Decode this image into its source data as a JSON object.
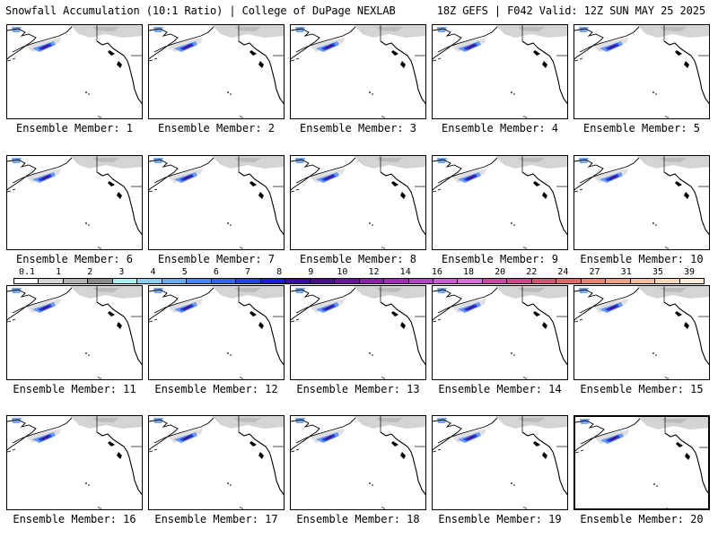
{
  "header": {
    "left": "Snowfall Accumulation (10:1 Ratio) | College of DuPage NEXLAB",
    "right": "18Z GEFS | F042 Valid: 12Z SUN MAY 25 2025"
  },
  "panels": [
    {
      "label": "Ensemble Member: 1"
    },
    {
      "label": "Ensemble Member: 2"
    },
    {
      "label": "Ensemble Member: 3"
    },
    {
      "label": "Ensemble Member: 4"
    },
    {
      "label": "Ensemble Member: 5"
    },
    {
      "label": "Ensemble Member: 6"
    },
    {
      "label": "Ensemble Member: 7"
    },
    {
      "label": "Ensemble Member: 8"
    },
    {
      "label": "Ensemble Member: 9"
    },
    {
      "label": "Ensemble Member: 10"
    },
    {
      "label": "Ensemble Member: 11"
    },
    {
      "label": "Ensemble Member: 12"
    },
    {
      "label": "Ensemble Member: 13"
    },
    {
      "label": "Ensemble Member: 14"
    },
    {
      "label": "Ensemble Member: 15"
    },
    {
      "label": "Ensemble Member: 16"
    },
    {
      "label": "Ensemble Member: 17"
    },
    {
      "label": "Ensemble Member: 18"
    },
    {
      "label": "Ensemble Member: 19"
    },
    {
      "label": "Ensemble Member: 20"
    }
  ],
  "colorbar": {
    "labels": [
      "0.1",
      "1",
      "2",
      "3",
      "4",
      "5",
      "6",
      "7",
      "8",
      "9",
      "10",
      "12",
      "14",
      "16",
      "18",
      "20",
      "22",
      "24",
      "27",
      "31",
      "35",
      "39"
    ],
    "colors": [
      "#ffffff",
      "#d6d6d6",
      "#b4b4b4",
      "#8c8c8c",
      "#a8f0f0",
      "#8ad0f2",
      "#6aaef0",
      "#4a8aee",
      "#3268ec",
      "#1e44ea",
      "#1a1ae6",
      "#3a0fa0",
      "#4a108a",
      "#6a1496",
      "#8a22a8",
      "#a030b8",
      "#b448c4",
      "#c85ed2",
      "#d870d8",
      "#c84aa4",
      "#cc4a8c",
      "#d25676",
      "#dc6a68",
      "#e6866e",
      "#eea284",
      "#f4bea0",
      "#f8d8bc",
      "#fcecd8"
    ]
  }
}
